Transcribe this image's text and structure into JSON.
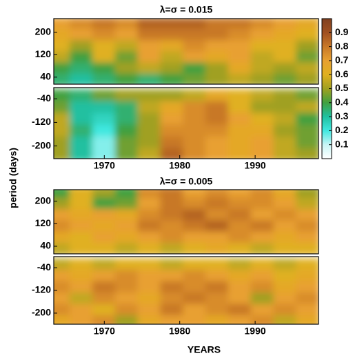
{
  "chart_data": [
    {
      "type": "heatmap",
      "title": "λ=σ = 0.015",
      "ylabel": "period (days)",
      "xlim": [
        1963.3,
        1998.4
      ],
      "xticks": [
        1970,
        1980,
        1990
      ],
      "x": [
        1964,
        1967,
        1970,
        1973,
        1976,
        1979,
        1982,
        1985,
        1988,
        1991,
        1994,
        1997
      ],
      "zlim": [
        0,
        1
      ],
      "zticks": [
        0.1,
        0.2,
        0.3,
        0.4,
        0.5,
        0.6,
        0.7,
        0.8,
        0.9
      ],
      "colorscale": [
        "#ffffff",
        "#c8f5f5",
        "#40e8e0",
        "#20c0a0",
        "#40a040",
        "#a0a020",
        "#e0b020",
        "#e8a030",
        "#c87828",
        "#a05020",
        "#804020"
      ],
      "colorbar": true,
      "panels": [
        {
          "ylim": [
            15,
            249
          ],
          "yticks": [
            40,
            120,
            200
          ],
          "y": [
            230,
            190,
            150,
            110,
            70,
            30
          ],
          "z": [
            [
              0.7,
              0.75,
              0.8,
              0.75,
              0.85,
              0.85,
              0.85,
              0.8,
              0.8,
              0.75,
              0.7,
              0.65
            ],
            [
              0.65,
              0.7,
              0.75,
              0.7,
              0.8,
              0.8,
              0.8,
              0.8,
              0.75,
              0.7,
              0.65,
              0.6
            ],
            [
              0.6,
              0.5,
              0.6,
              0.55,
              0.7,
              0.65,
              0.75,
              0.7,
              0.7,
              0.6,
              0.6,
              0.5
            ],
            [
              0.55,
              0.4,
              0.6,
              0.45,
              0.7,
              0.55,
              0.7,
              0.65,
              0.7,
              0.55,
              0.6,
              0.45
            ],
            [
              0.4,
              0.35,
              0.4,
              0.5,
              0.55,
              0.5,
              0.4,
              0.5,
              0.65,
              0.55,
              0.5,
              0.55
            ],
            [
              0.35,
              0.3,
              0.35,
              0.4,
              0.35,
              0.4,
              0.45,
              0.5,
              0.55,
              0.5,
              0.45,
              0.5
            ]
          ]
        },
        {
          "ylim": [
            -243,
            -2
          ],
          "yticks": [
            -200,
            -120,
            -40
          ],
          "y": [
            -30,
            -70,
            -110,
            -150,
            -190,
            -230
          ],
          "z": [
            [
              0.4,
              0.35,
              0.45,
              0.5,
              0.5,
              0.5,
              0.55,
              0.65,
              0.6,
              0.55,
              0.5,
              0.45
            ],
            [
              0.45,
              0.3,
              0.3,
              0.35,
              0.55,
              0.65,
              0.75,
              0.8,
              0.6,
              0.5,
              0.5,
              0.55
            ],
            [
              0.55,
              0.3,
              0.25,
              0.35,
              0.5,
              0.7,
              0.75,
              0.8,
              0.7,
              0.6,
              0.55,
              0.4
            ],
            [
              0.55,
              0.35,
              0.2,
              0.4,
              0.5,
              0.75,
              0.75,
              0.75,
              0.65,
              0.65,
              0.5,
              0.45
            ],
            [
              0.5,
              0.3,
              0.15,
              0.45,
              0.5,
              0.8,
              0.75,
              0.7,
              0.65,
              0.7,
              0.55,
              0.45
            ],
            [
              0.5,
              0.3,
              0.15,
              0.45,
              0.55,
              0.85,
              0.75,
              0.7,
              0.65,
              0.7,
              0.55,
              0.5
            ]
          ]
        }
      ]
    },
    {
      "type": "heatmap",
      "title": "λ=σ = 0.005",
      "xlabel": "YEARS",
      "xlim": [
        1963.3,
        1998.4
      ],
      "xticks": [
        1970,
        1980,
        1990
      ],
      "x": [
        1964,
        1967,
        1970,
        1973,
        1976,
        1979,
        1982,
        1985,
        1988,
        1991,
        1994,
        1997
      ],
      "zlim": [
        0,
        1
      ],
      "colorscale": [
        "#ffffff",
        "#c8f5f5",
        "#40e8e0",
        "#20c0a0",
        "#40a040",
        "#a0a020",
        "#e0b020",
        "#e8a030",
        "#c87828",
        "#a05020",
        "#804020"
      ],
      "colorbar": false,
      "panels": [
        {
          "ylim": [
            13,
            241
          ],
          "yticks": [
            40,
            120,
            200
          ],
          "y": [
            230,
            190,
            150,
            110,
            70,
            30
          ],
          "z": [
            [
              0.4,
              0.6,
              0.5,
              0.4,
              0.75,
              0.8,
              0.7,
              0.75,
              0.7,
              0.75,
              0.65,
              0.5
            ],
            [
              0.5,
              0.6,
              0.4,
              0.45,
              0.7,
              0.8,
              0.75,
              0.8,
              0.75,
              0.75,
              0.7,
              0.55
            ],
            [
              0.7,
              0.65,
              0.7,
              0.65,
              0.75,
              0.8,
              0.85,
              0.75,
              0.8,
              0.7,
              0.75,
              0.7
            ],
            [
              0.75,
              0.7,
              0.65,
              0.7,
              0.8,
              0.75,
              0.8,
              0.85,
              0.75,
              0.8,
              0.7,
              0.75
            ],
            [
              0.65,
              0.6,
              0.7,
              0.65,
              0.7,
              0.75,
              0.7,
              0.7,
              0.75,
              0.7,
              0.65,
              0.7
            ],
            [
              0.55,
              0.6,
              0.6,
              0.55,
              0.6,
              0.55,
              0.6,
              0.65,
              0.6,
              0.55,
              0.6,
              0.6
            ]
          ]
        },
        {
          "ylim": [
            -239,
            -1
          ],
          "yticks": [
            -200,
            -120,
            -40
          ],
          "y": [
            -30,
            -70,
            -110,
            -150,
            -190,
            -230
          ],
          "z": [
            [
              0.55,
              0.6,
              0.55,
              0.6,
              0.6,
              0.55,
              0.6,
              0.6,
              0.55,
              0.6,
              0.55,
              0.6
            ],
            [
              0.7,
              0.65,
              0.7,
              0.75,
              0.7,
              0.7,
              0.75,
              0.7,
              0.65,
              0.7,
              0.6,
              0.65
            ],
            [
              0.75,
              0.7,
              0.8,
              0.75,
              0.7,
              0.8,
              0.75,
              0.8,
              0.7,
              0.75,
              0.65,
              0.7
            ],
            [
              0.7,
              0.55,
              0.75,
              0.7,
              0.65,
              0.75,
              0.8,
              0.75,
              0.7,
              0.5,
              0.7,
              0.75
            ],
            [
              0.75,
              0.7,
              0.6,
              0.75,
              0.7,
              0.8,
              0.7,
              0.75,
              0.8,
              0.7,
              0.75,
              0.7
            ],
            [
              0.65,
              0.7,
              0.75,
              0.5,
              0.65,
              0.7,
              0.7,
              0.65,
              0.7,
              0.75,
              0.55,
              0.65
            ]
          ]
        }
      ]
    }
  ]
}
